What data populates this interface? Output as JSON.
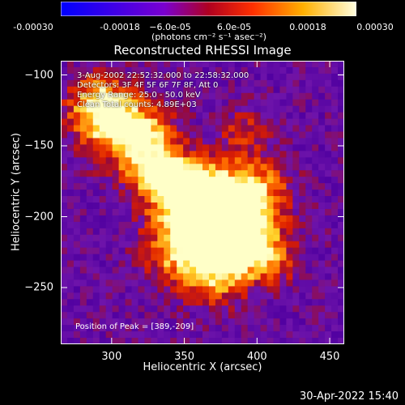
{
  "chart_data": {
    "type": "heatmap",
    "title": "Reconstructed RHESSI Image",
    "xlabel": "Heliocentric X (arcsec)",
    "ylabel": "Heliocentric Y (arcsec)",
    "xlim": [
      265,
      460
    ],
    "ylim": [
      -290,
      -90
    ],
    "xticks": [
      300,
      350,
      400,
      450
    ],
    "xtick_labels": [
      "300",
      "350",
      "400",
      "450"
    ],
    "yticks": [
      -100,
      -150,
      -200,
      -250
    ],
    "ytick_labels": [
      "−100",
      "−150",
      "−200",
      "−250"
    ],
    "colorbar": {
      "range": [
        -0.0003,
        0.0003
      ],
      "tick_labels": [
        "-0.00030",
        "-0.00018",
        "−6.0e-05",
        "6.0e-05",
        "0.00018",
        "0.00030"
      ],
      "units": "(photons cm⁻² s⁻¹ asec⁻²)",
      "colormap": [
        "#0000ff",
        "#7a00d0",
        "#c01010",
        "#ff6000",
        "#ffff90",
        "#ffffff"
      ]
    },
    "info_lines": [
      "3-Aug-2002 22:52:32.000 to 22:58:32.000",
      "Detectors: 3F 4F 5F 6F 7F 8F, Att 0",
      "Energy Range: 25.0 - 50.0 keV",
      "Clean    Total counts: 4.89E+03"
    ],
    "peak_text": "Position of Peak = [389,-209]"
  },
  "timestamp": "30-Apr-2022 15:40"
}
